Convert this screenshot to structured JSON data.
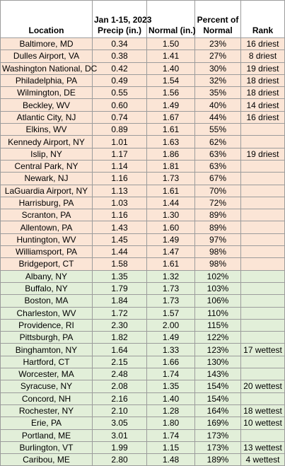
{
  "table": {
    "headers": {
      "location": "Location",
      "precip_line1": "Jan 1-15, 2023",
      "precip_line2": "Precip (in.)",
      "normal": "Normal (in.)",
      "percent_line1": "Percent of",
      "percent_line2": "Normal",
      "rank": "Rank"
    },
    "colors": {
      "dry_row_bg": "#fbe5d6",
      "wet_row_bg": "#e2efd9",
      "border": "#9c9c9c"
    },
    "rows": [
      {
        "location": "Baltimore, MD",
        "precip": "0.34",
        "normal": "1.50",
        "percent": "23%",
        "rank": "16 driest",
        "category": "dry"
      },
      {
        "location": "Dulles Airport, VA",
        "precip": "0.38",
        "normal": "1.41",
        "percent": "27%",
        "rank": "8 driest",
        "category": "dry"
      },
      {
        "location": "Washington National, DC",
        "precip": "0.42",
        "normal": "1.40",
        "percent": "30%",
        "rank": "19 driest",
        "category": "dry"
      },
      {
        "location": "Philadelphia, PA",
        "precip": "0.49",
        "normal": "1.54",
        "percent": "32%",
        "rank": "18 driest",
        "category": "dry"
      },
      {
        "location": "Wilmington, DE",
        "precip": "0.55",
        "normal": "1.56",
        "percent": "35%",
        "rank": "18 driest",
        "category": "dry"
      },
      {
        "location": "Beckley, WV",
        "precip": "0.60",
        "normal": "1.49",
        "percent": "40%",
        "rank": "14 driest",
        "category": "dry"
      },
      {
        "location": "Atlantic City, NJ",
        "precip": "0.74",
        "normal": "1.67",
        "percent": "44%",
        "rank": "16 driest",
        "category": "dry"
      },
      {
        "location": "Elkins, WV",
        "precip": "0.89",
        "normal": "1.61",
        "percent": "55%",
        "rank": "",
        "category": "dry"
      },
      {
        "location": "Kennedy Airport, NY",
        "precip": "1.01",
        "normal": "1.63",
        "percent": "62%",
        "rank": "",
        "category": "dry"
      },
      {
        "location": "Islip, NY",
        "precip": "1.17",
        "normal": "1.86",
        "percent": "63%",
        "rank": "19 driest",
        "category": "dry"
      },
      {
        "location": "Central Park, NY",
        "precip": "1.14",
        "normal": "1.81",
        "percent": "63%",
        "rank": "",
        "category": "dry"
      },
      {
        "location": "Newark, NJ",
        "precip": "1.16",
        "normal": "1.73",
        "percent": "67%",
        "rank": "",
        "category": "dry"
      },
      {
        "location": "LaGuardia Airport, NY",
        "precip": "1.13",
        "normal": "1.61",
        "percent": "70%",
        "rank": "",
        "category": "dry"
      },
      {
        "location": "Harrisburg, PA",
        "precip": "1.03",
        "normal": "1.44",
        "percent": "72%",
        "rank": "",
        "category": "dry"
      },
      {
        "location": "Scranton, PA",
        "precip": "1.16",
        "normal": "1.30",
        "percent": "89%",
        "rank": "",
        "category": "dry"
      },
      {
        "location": "Allentown, PA",
        "precip": "1.43",
        "normal": "1.60",
        "percent": "89%",
        "rank": "",
        "category": "dry"
      },
      {
        "location": "Huntington, WV",
        "precip": "1.45",
        "normal": "1.49",
        "percent": "97%",
        "rank": "",
        "category": "dry"
      },
      {
        "location": "Williamsport, PA",
        "precip": "1.44",
        "normal": "1.47",
        "percent": "98%",
        "rank": "",
        "category": "dry"
      },
      {
        "location": "Bridgeport, CT",
        "precip": "1.58",
        "normal": "1.61",
        "percent": "98%",
        "rank": "",
        "category": "dry"
      },
      {
        "location": "Albany, NY",
        "precip": "1.35",
        "normal": "1.32",
        "percent": "102%",
        "rank": "",
        "category": "wet"
      },
      {
        "location": "Buffalo, NY",
        "precip": "1.79",
        "normal": "1.73",
        "percent": "103%",
        "rank": "",
        "category": "wet"
      },
      {
        "location": "Boston, MA",
        "precip": "1.84",
        "normal": "1.73",
        "percent": "106%",
        "rank": "",
        "category": "wet"
      },
      {
        "location": "Charleston, WV",
        "precip": "1.72",
        "normal": "1.57",
        "percent": "110%",
        "rank": "",
        "category": "wet"
      },
      {
        "location": "Providence, RI",
        "precip": "2.30",
        "normal": "2.00",
        "percent": "115%",
        "rank": "",
        "category": "wet"
      },
      {
        "location": "Pittsburgh, PA",
        "precip": "1.82",
        "normal": "1.49",
        "percent": "122%",
        "rank": "",
        "category": "wet"
      },
      {
        "location": "Binghamton, NY",
        "precip": "1.64",
        "normal": "1.33",
        "percent": "123%",
        "rank": "17 wettest",
        "category": "wet"
      },
      {
        "location": "Hartford, CT",
        "precip": "2.15",
        "normal": "1.66",
        "percent": "130%",
        "rank": "",
        "category": "wet"
      },
      {
        "location": "Worcester, MA",
        "precip": "2.48",
        "normal": "1.74",
        "percent": "143%",
        "rank": "",
        "category": "wet"
      },
      {
        "location": "Syracuse, NY",
        "precip": "2.08",
        "normal": "1.35",
        "percent": "154%",
        "rank": "20 wettest",
        "category": "wet"
      },
      {
        "location": "Concord, NH",
        "precip": "2.16",
        "normal": "1.40",
        "percent": "154%",
        "rank": "",
        "category": "wet"
      },
      {
        "location": "Rochester, NY",
        "precip": "2.10",
        "normal": "1.28",
        "percent": "164%",
        "rank": "18 wettest",
        "category": "wet"
      },
      {
        "location": "Erie, PA",
        "precip": "3.05",
        "normal": "1.80",
        "percent": "169%",
        "rank": "10 wettest",
        "category": "wet"
      },
      {
        "location": "Portland, ME",
        "precip": "3.01",
        "normal": "1.74",
        "percent": "173%",
        "rank": "",
        "category": "wet"
      },
      {
        "location": "Burlington, VT",
        "precip": "1.99",
        "normal": "1.15",
        "percent": "173%",
        "rank": "13 wettest",
        "category": "wet"
      },
      {
        "location": "Caribou, ME",
        "precip": "2.80",
        "normal": "1.48",
        "percent": "189%",
        "rank": "4 wettest",
        "category": "wet"
      }
    ]
  }
}
